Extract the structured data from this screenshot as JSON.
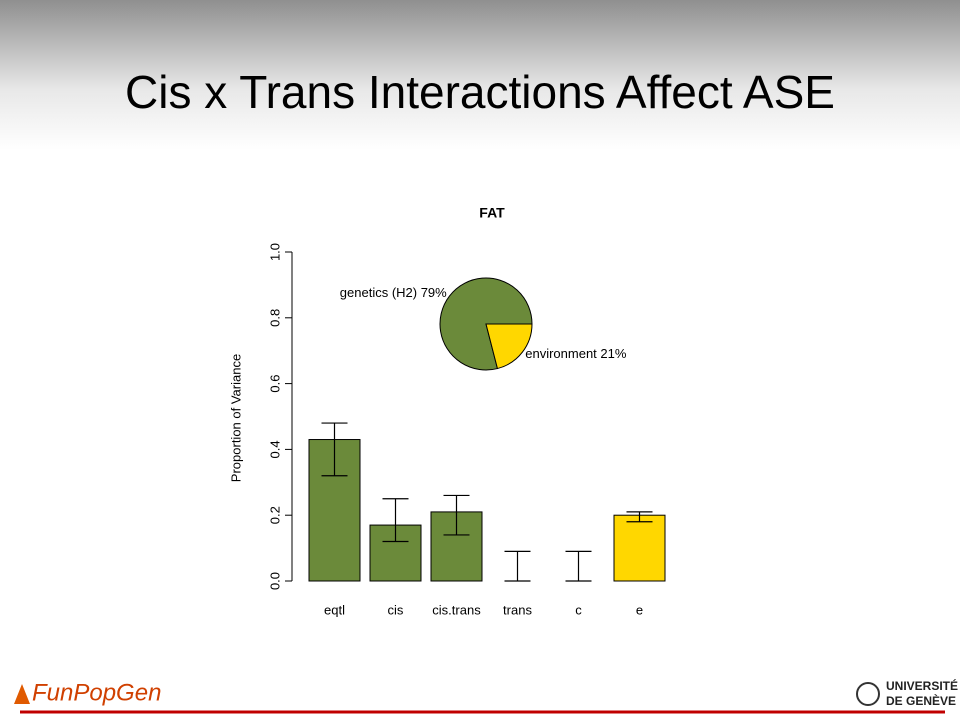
{
  "slide": {
    "title": "Cis x Trans Interactions Affect ASE"
  },
  "chart_data": {
    "type": "bar",
    "title": "FAT",
    "y_label": "Proportion of Variance",
    "categories": [
      "eqtl",
      "cis",
      "cis.trans",
      "trans",
      "c",
      "e"
    ],
    "series": [
      {
        "colors": [
          "#6b8a3a",
          "#6b8a3a",
          "#6b8a3a",
          "#6b8a3a",
          "#6b8a3a",
          "#ffd700"
        ],
        "values": [
          0.43,
          0.17,
          0.21,
          0,
          0,
          0.2
        ],
        "error_lower": [
          0.32,
          0.12,
          0.14,
          0,
          0,
          0.18
        ],
        "error_upper": [
          0.48,
          0.25,
          0.26,
          0.09,
          0.09,
          0.21
        ]
      }
    ],
    "ylim": [
      0,
      1
    ],
    "yticks": [
      {
        "value": 0,
        "label": "0.0"
      },
      0.2,
      0.4,
      0.6,
      0.8,
      {
        "value": 1,
        "label": "1.0"
      }
    ],
    "pie": {
      "type": "pie",
      "labels": [
        "genetics (H2) 79%",
        "environment 21%"
      ],
      "values": [
        79,
        21
      ],
      "colors": [
        "#6b8a3a",
        "#ffd700"
      ]
    }
  },
  "footer": {
    "logo": "FunPopGen",
    "university": [
      "UNIVERSITÉ",
      "DE GENÈVE"
    ]
  }
}
